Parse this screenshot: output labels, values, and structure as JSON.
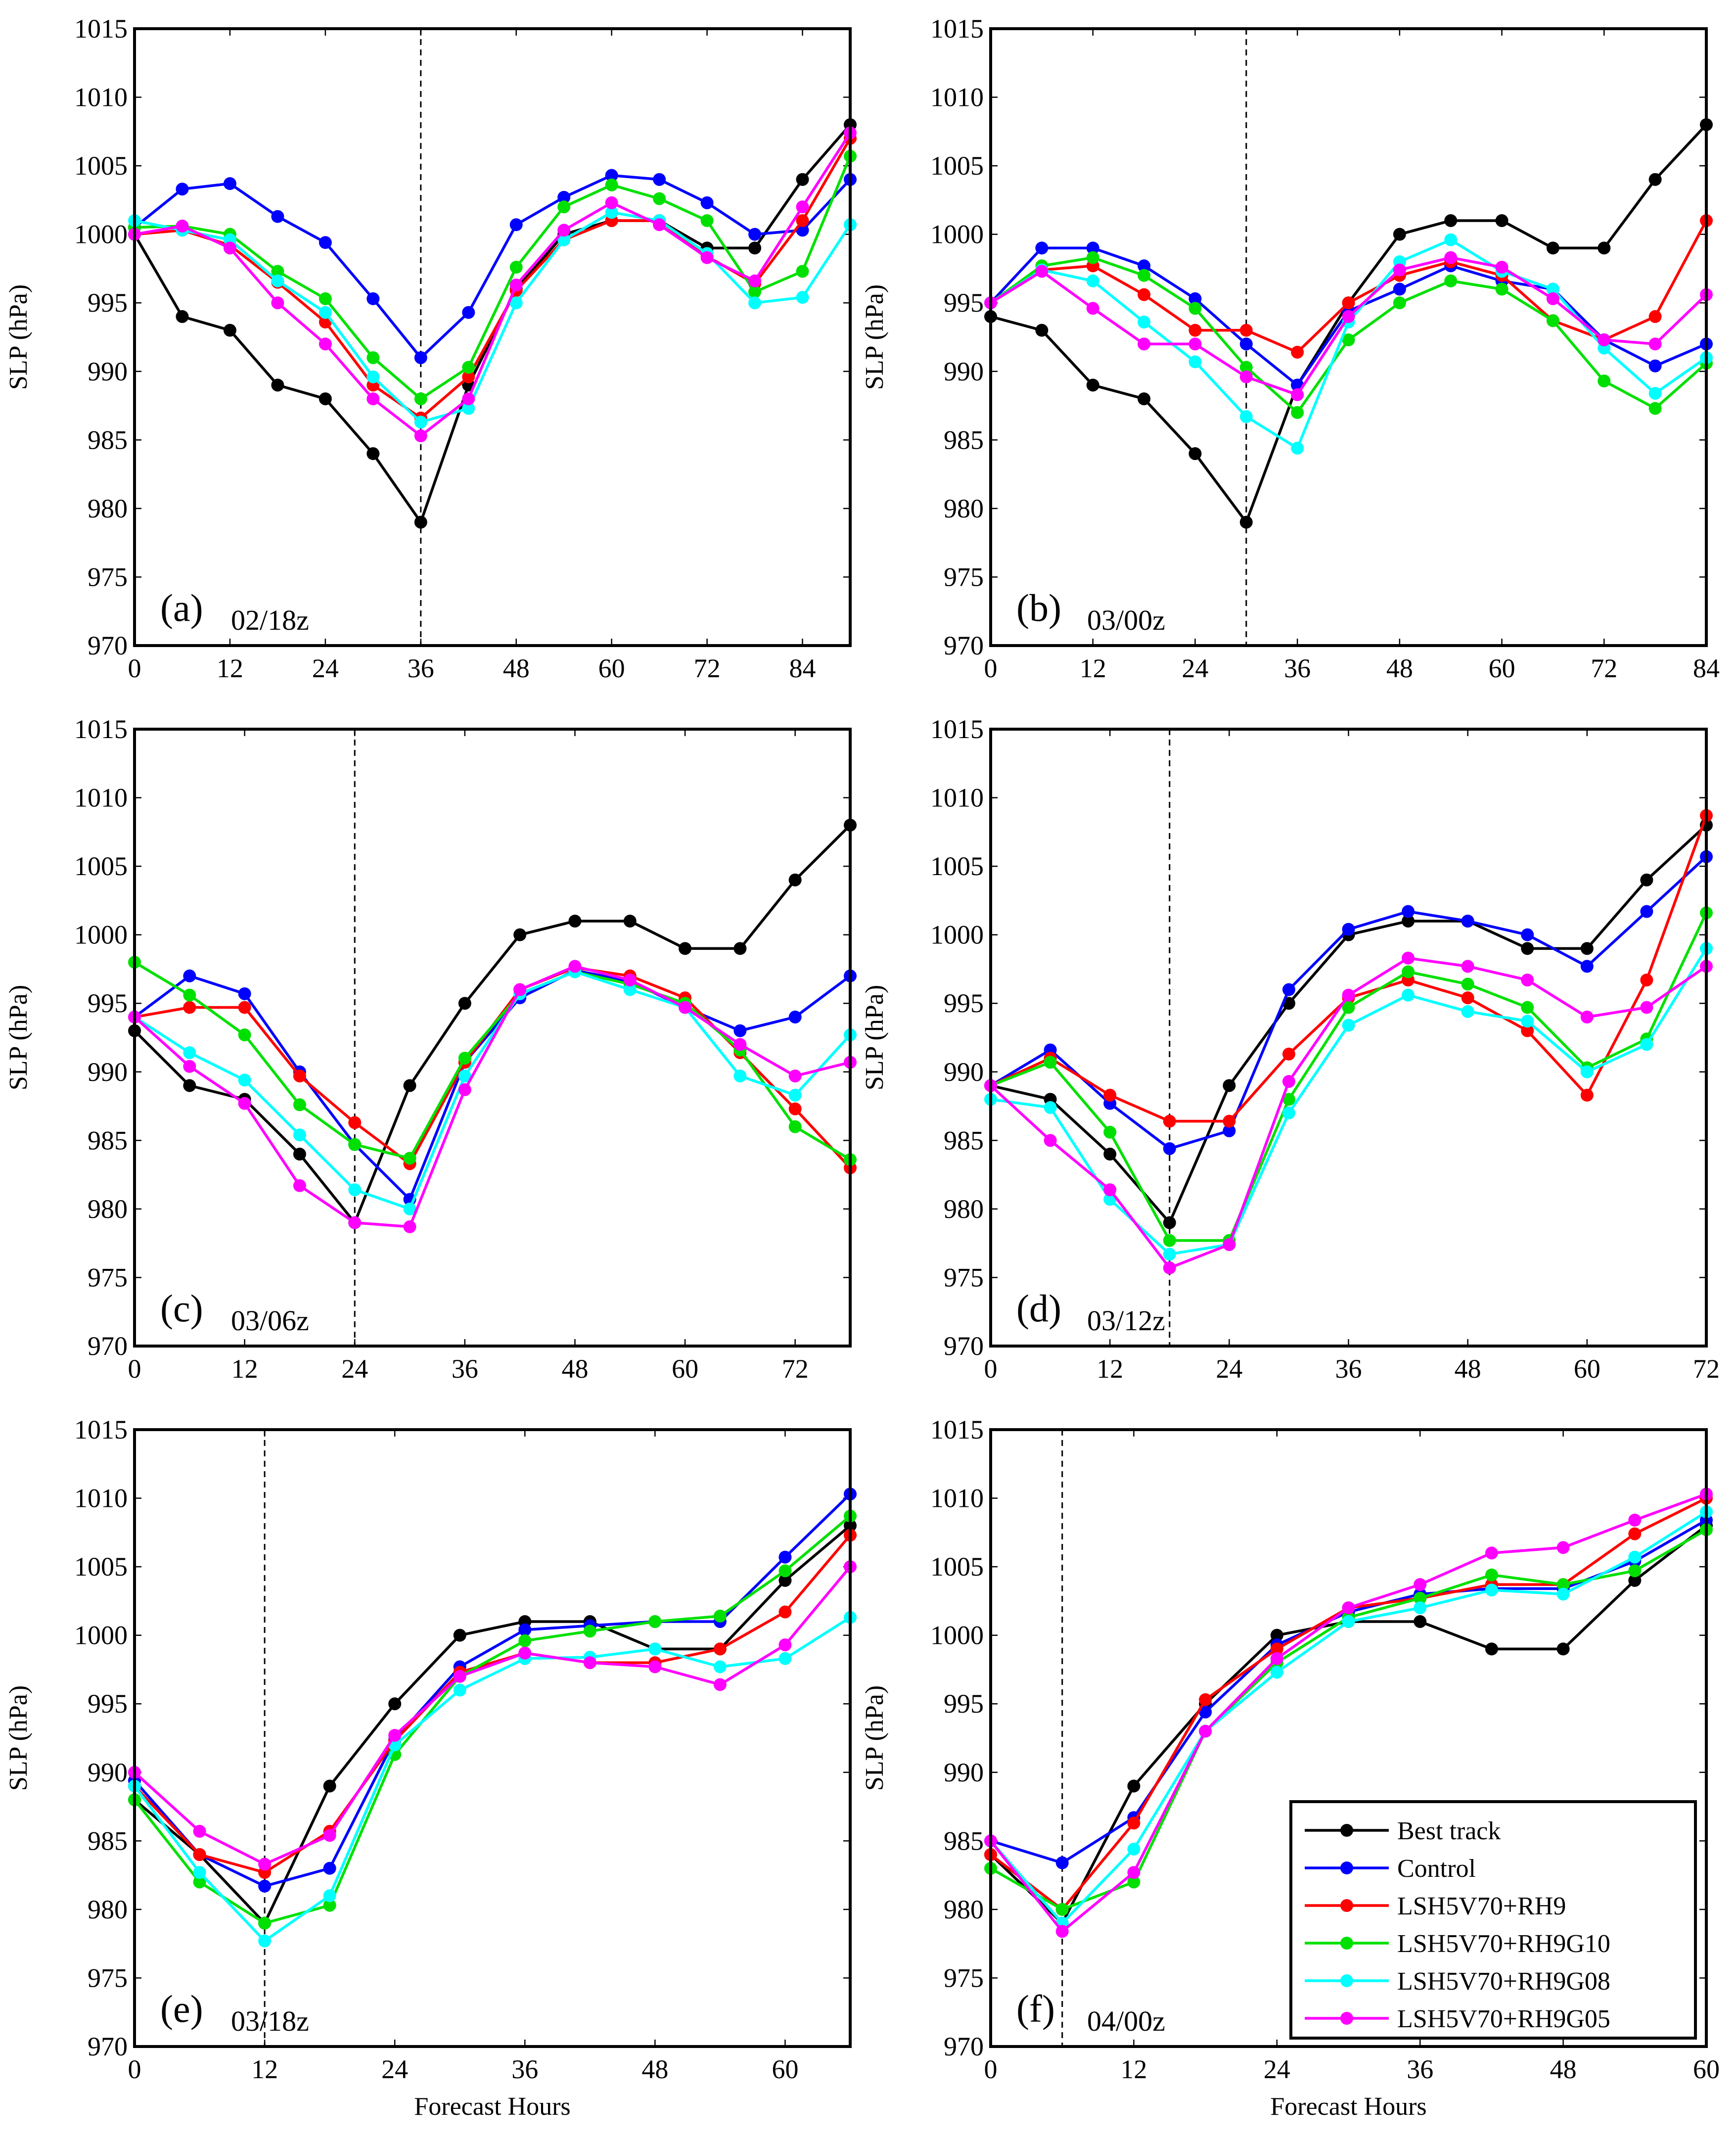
{
  "chart_data": {
    "type": "line",
    "y_axis_label": "SLP (hPa)",
    "x_axis_label": "Forecast Hours",
    "ylim": [
      970,
      1015
    ],
    "y_ticks": [
      970,
      975,
      980,
      985,
      990,
      995,
      1000,
      1005,
      1010,
      1015
    ],
    "legend": {
      "placement": "lower-right of panel (f)",
      "entries": [
        "Best track",
        "Control",
        "LSH5V70+RH9",
        "LSH5V70+RH9G10",
        "LSH5V70+RH9G08",
        "LSH5V70+RH9G05"
      ]
    },
    "series_colors": {
      "Best track": "#000000",
      "Control": "#0000ff",
      "LSH5V70+RH9": "#ff0000",
      "LSH5V70+RH9G10": "#00e000",
      "LSH5V70+RH9G08": "#00ffff",
      "LSH5V70+RH9G05": "#ff00ff"
    },
    "panels": [
      {
        "id": "a",
        "label": "(a)",
        "init": "02/18z",
        "xlim": [
          0,
          90
        ],
        "x_ticks": [
          0,
          12,
          24,
          36,
          48,
          60,
          72,
          84
        ],
        "vline": 36,
        "x": [
          0,
          6,
          12,
          18,
          24,
          30,
          36,
          42,
          48,
          54,
          60,
          66,
          72,
          78,
          84,
          90
        ],
        "series": [
          {
            "name": "Best track",
            "values": [
              1000,
              994,
              993,
              989,
              988,
              984,
              979,
              989,
              996,
              1000,
              1001,
              1001,
              999,
              999,
              1004,
              1008
            ]
          },
          {
            "name": "Control",
            "values": [
              1000.5,
              1003.3,
              1003.7,
              1001.3,
              999.4,
              995.3,
              991.0,
              994.3,
              1000.7,
              1002.7,
              1004.3,
              1004.0,
              1002.3,
              1000.0,
              1000.3,
              1004.0
            ]
          },
          {
            "name": "LSH5V70+RH9",
            "values": [
              1000.0,
              1000.3,
              999.2,
              996.5,
              993.6,
              989.0,
              986.6,
              989.6,
              995.9,
              999.6,
              1001.0,
              1001.0,
              998.4,
              996.4,
              1001.0,
              1007.0
            ]
          },
          {
            "name": "LSH5V70+RH9G10",
            "values": [
              1000.5,
              1000.6,
              1000.0,
              997.3,
              995.3,
              991.0,
              988.0,
              990.3,
              997.6,
              1002.0,
              1003.6,
              1002.6,
              1001.0,
              995.8,
              997.3,
              1005.7
            ]
          },
          {
            "name": "LSH5V70+RH9G08",
            "values": [
              1001.0,
              1000.3,
              999.6,
              996.6,
              994.3,
              989.6,
              986.3,
              987.3,
              995.0,
              999.6,
              1001.6,
              1001.0,
              998.6,
              995.0,
              995.4,
              1000.7
            ]
          },
          {
            "name": "LSH5V70+RH9G05",
            "values": [
              1000.0,
              1000.6,
              999.0,
              995.0,
              992.0,
              988.0,
              985.3,
              988.0,
              996.3,
              1000.3,
              1002.3,
              1000.7,
              998.3,
              996.6,
              1002.0,
              1007.4
            ]
          }
        ]
      },
      {
        "id": "b",
        "label": "(b)",
        "init": "03/00z",
        "xlim": [
          0,
          84
        ],
        "x_ticks": [
          0,
          12,
          24,
          36,
          48,
          60,
          72,
          84
        ],
        "vline": 30,
        "x": [
          0,
          6,
          12,
          18,
          24,
          30,
          36,
          42,
          48,
          54,
          60,
          66,
          72,
          78,
          84
        ],
        "series": [
          {
            "name": "Best track",
            "values": [
              994,
              993,
              989,
              988,
              984,
              979,
              989,
              995,
              1000,
              1001,
              1001,
              999,
              999,
              1004,
              1008
            ]
          },
          {
            "name": "Control",
            "values": [
              995.0,
              999.0,
              999.0,
              997.7,
              995.3,
              992.0,
              989.0,
              994.4,
              996.0,
              997.7,
              996.6,
              996.0,
              992.3,
              990.4,
              992.0
            ]
          },
          {
            "name": "LSH5V70+RH9",
            "values": [
              995.0,
              997.4,
              997.7,
              995.6,
              993.0,
              993.0,
              991.4,
              995.0,
              997.0,
              998.0,
              997.0,
              993.7,
              992.3,
              994.0,
              1001.0
            ]
          },
          {
            "name": "LSH5V70+RH9G10",
            "values": [
              995.0,
              997.7,
              998.3,
              997.0,
              994.6,
              990.3,
              987.0,
              992.3,
              995.0,
              996.6,
              996.0,
              993.7,
              989.3,
              987.3,
              990.6
            ]
          },
          {
            "name": "LSH5V70+RH9G08",
            "values": [
              995.0,
              997.4,
              996.6,
              993.6,
              990.7,
              986.7,
              984.4,
              993.6,
              998.0,
              999.6,
              997.3,
              996.0,
              991.7,
              988.4,
              991.0
            ]
          },
          {
            "name": "LSH5V70+RH9G05",
            "values": [
              995.0,
              997.3,
              994.6,
              992.0,
              992.0,
              989.6,
              988.3,
              994.0,
              997.4,
              998.3,
              997.6,
              995.3,
              992.3,
              992.0,
              995.6
            ]
          }
        ]
      },
      {
        "id": "c",
        "label": "(c)",
        "init": "03/06z",
        "xlim": [
          0,
          78
        ],
        "x_ticks": [
          0,
          12,
          24,
          36,
          48,
          60,
          72
        ],
        "vline": 24,
        "x": [
          0,
          6,
          12,
          18,
          24,
          30,
          36,
          42,
          48,
          54,
          60,
          66,
          72,
          78
        ],
        "series": [
          {
            "name": "Best track",
            "values": [
              993,
              989,
              988,
              984,
              979,
              989,
              995,
              1000,
              1001,
              1001,
              999,
              999,
              1004,
              1008
            ]
          },
          {
            "name": "Control",
            "values": [
              994.0,
              997.0,
              995.7,
              990.0,
              984.7,
              980.7,
              990.7,
              995.4,
              997.4,
              996.6,
              994.7,
              993.0,
              994.0,
              997.0
            ]
          },
          {
            "name": "LSH5V70+RH9",
            "values": [
              994.0,
              994.7,
              994.7,
              989.7,
              986.3,
              983.3,
              990.7,
              996.0,
              997.6,
              997.0,
              995.4,
              991.4,
              987.3,
              983.0
            ]
          },
          {
            "name": "LSH5V70+RH9G10",
            "values": [
              998.0,
              995.6,
              992.7,
              987.6,
              984.7,
              983.7,
              991.0,
              995.7,
              997.3,
              996.4,
              995.0,
              991.6,
              986.0,
              983.6
            ]
          },
          {
            "name": "LSH5V70+RH9G08",
            "values": [
              994.0,
              991.4,
              989.4,
              985.4,
              981.4,
              980.0,
              989.7,
              995.7,
              997.3,
              996.0,
              994.7,
              989.7,
              988.3,
              992.7
            ]
          },
          {
            "name": "LSH5V70+RH9G05",
            "values": [
              994.0,
              990.4,
              987.7,
              981.7,
              979.0,
              978.7,
              988.7,
              996.0,
              997.7,
              996.7,
              994.7,
              992.0,
              989.7,
              990.7
            ]
          }
        ]
      },
      {
        "id": "d",
        "label": "(d)",
        "init": "03/12z",
        "xlim": [
          0,
          72
        ],
        "x_ticks": [
          0,
          12,
          24,
          36,
          48,
          60,
          72
        ],
        "vline": 18,
        "x": [
          0,
          6,
          12,
          18,
          24,
          30,
          36,
          42,
          48,
          54,
          60,
          66,
          72
        ],
        "series": [
          {
            "name": "Best track",
            "values": [
              989,
              988,
              984,
              979,
              989,
              995,
              1000,
              1001,
              1001,
              999,
              999,
              1004,
              1008
            ]
          },
          {
            "name": "Control",
            "values": [
              989.0,
              991.6,
              987.7,
              984.4,
              985.7,
              996.0,
              1000.4,
              1001.7,
              1001.0,
              1000.0,
              997.7,
              1001.7,
              1005.7
            ]
          },
          {
            "name": "LSH5V70+RH9",
            "values": [
              989.0,
              991.0,
              988.3,
              986.4,
              986.4,
              991.3,
              995.4,
              996.7,
              995.4,
              993.0,
              988.3,
              996.7,
              1008.7
            ]
          },
          {
            "name": "LSH5V70+RH9G10",
            "values": [
              989.0,
              990.7,
              985.6,
              977.7,
              977.7,
              988.0,
              994.7,
              997.3,
              996.4,
              994.7,
              990.3,
              992.4,
              1001.6
            ]
          },
          {
            "name": "LSH5V70+RH9G08",
            "values": [
              988.0,
              987.4,
              980.7,
              976.7,
              977.4,
              987.0,
              993.4,
              995.6,
              994.4,
              993.7,
              990.0,
              992.0,
              999.0
            ]
          },
          {
            "name": "LSH5V70+RH9G05",
            "values": [
              989.0,
              985.0,
              981.4,
              975.7,
              977.4,
              989.3,
              995.6,
              998.3,
              997.7,
              996.7,
              994.0,
              994.7,
              997.7
            ]
          }
        ]
      },
      {
        "id": "e",
        "label": "(e)",
        "init": "03/18z",
        "xlim": [
          0,
          66
        ],
        "x_ticks": [
          0,
          12,
          24,
          36,
          48,
          60
        ],
        "vline": 12,
        "x": [
          0,
          6,
          12,
          18,
          24,
          30,
          36,
          42,
          48,
          54,
          60,
          66
        ],
        "series": [
          {
            "name": "Best track",
            "values": [
              988,
              984,
              979,
              989,
              995,
              1000,
              1001,
              1001,
              999,
              999,
              1004,
              1008
            ]
          },
          {
            "name": "Control",
            "values": [
              989.4,
              984.0,
              981.7,
              983.0,
              992.4,
              997.7,
              1000.4,
              1000.7,
              1001.0,
              1001.0,
              1005.7,
              1010.3
            ]
          },
          {
            "name": "LSH5V70+RH9",
            "values": [
              989.0,
              984.0,
              982.7,
              985.7,
              992.3,
              997.3,
              998.7,
              998.0,
              998.0,
              999.0,
              1001.7,
              1007.3
            ]
          },
          {
            "name": "LSH5V70+RH9G10",
            "values": [
              988.0,
              982.0,
              979.0,
              980.3,
              991.3,
              997.0,
              999.6,
              1000.3,
              1001.0,
              1001.4,
              1004.7,
              1008.7
            ]
          },
          {
            "name": "LSH5V70+RH9G08",
            "values": [
              989.0,
              982.7,
              977.7,
              981.0,
              992.0,
              996.0,
              998.3,
              998.4,
              999.0,
              997.7,
              998.3,
              1001.3
            ]
          },
          {
            "name": "LSH5V70+RH9G05",
            "values": [
              990.0,
              985.7,
              983.3,
              985.4,
              992.7,
              997.0,
              998.7,
              998.0,
              997.7,
              996.4,
              999.3,
              1005.0
            ]
          }
        ]
      },
      {
        "id": "f",
        "label": "(f)",
        "init": "04/00z",
        "xlim": [
          0,
          60
        ],
        "x_ticks": [
          0,
          12,
          24,
          36,
          48,
          60
        ],
        "vline": 6,
        "x": [
          0,
          6,
          12,
          18,
          24,
          30,
          36,
          42,
          48,
          54,
          60
        ],
        "series": [
          {
            "name": "Best track",
            "values": [
              984,
              979,
              989,
              995,
              1000,
              1001,
              1001,
              999,
              999,
              1004,
              1008
            ]
          },
          {
            "name": "Control",
            "values": [
              985.0,
              983.4,
              986.7,
              994.4,
              999.3,
              1001.7,
              1003.0,
              1003.4,
              1003.4,
              1005.4,
              1008.4
            ]
          },
          {
            "name": "LSH5V70+RH9",
            "values": [
              984.0,
              980.0,
              986.3,
              995.3,
              999.0,
              1002.0,
              1002.7,
              1003.7,
              1003.7,
              1007.4,
              1010.0
            ]
          },
          {
            "name": "LSH5V70+RH9G10",
            "values": [
              983.0,
              980.0,
              982.0,
              993.0,
              998.0,
              1001.3,
              1002.7,
              1004.4,
              1003.7,
              1004.7,
              1007.7
            ]
          },
          {
            "name": "LSH5V70+RH9G08",
            "values": [
              985.0,
              979.0,
              984.4,
              993.0,
              997.3,
              1001.0,
              1002.0,
              1003.3,
              1003.0,
              1005.7,
              1009.0
            ]
          },
          {
            "name": "LSH5V70+RH9G05",
            "values": [
              985.0,
              978.4,
              982.7,
              993.0,
              998.3,
              1002.0,
              1003.7,
              1006.0,
              1006.4,
              1008.4,
              1010.3
            ]
          }
        ]
      }
    ]
  }
}
